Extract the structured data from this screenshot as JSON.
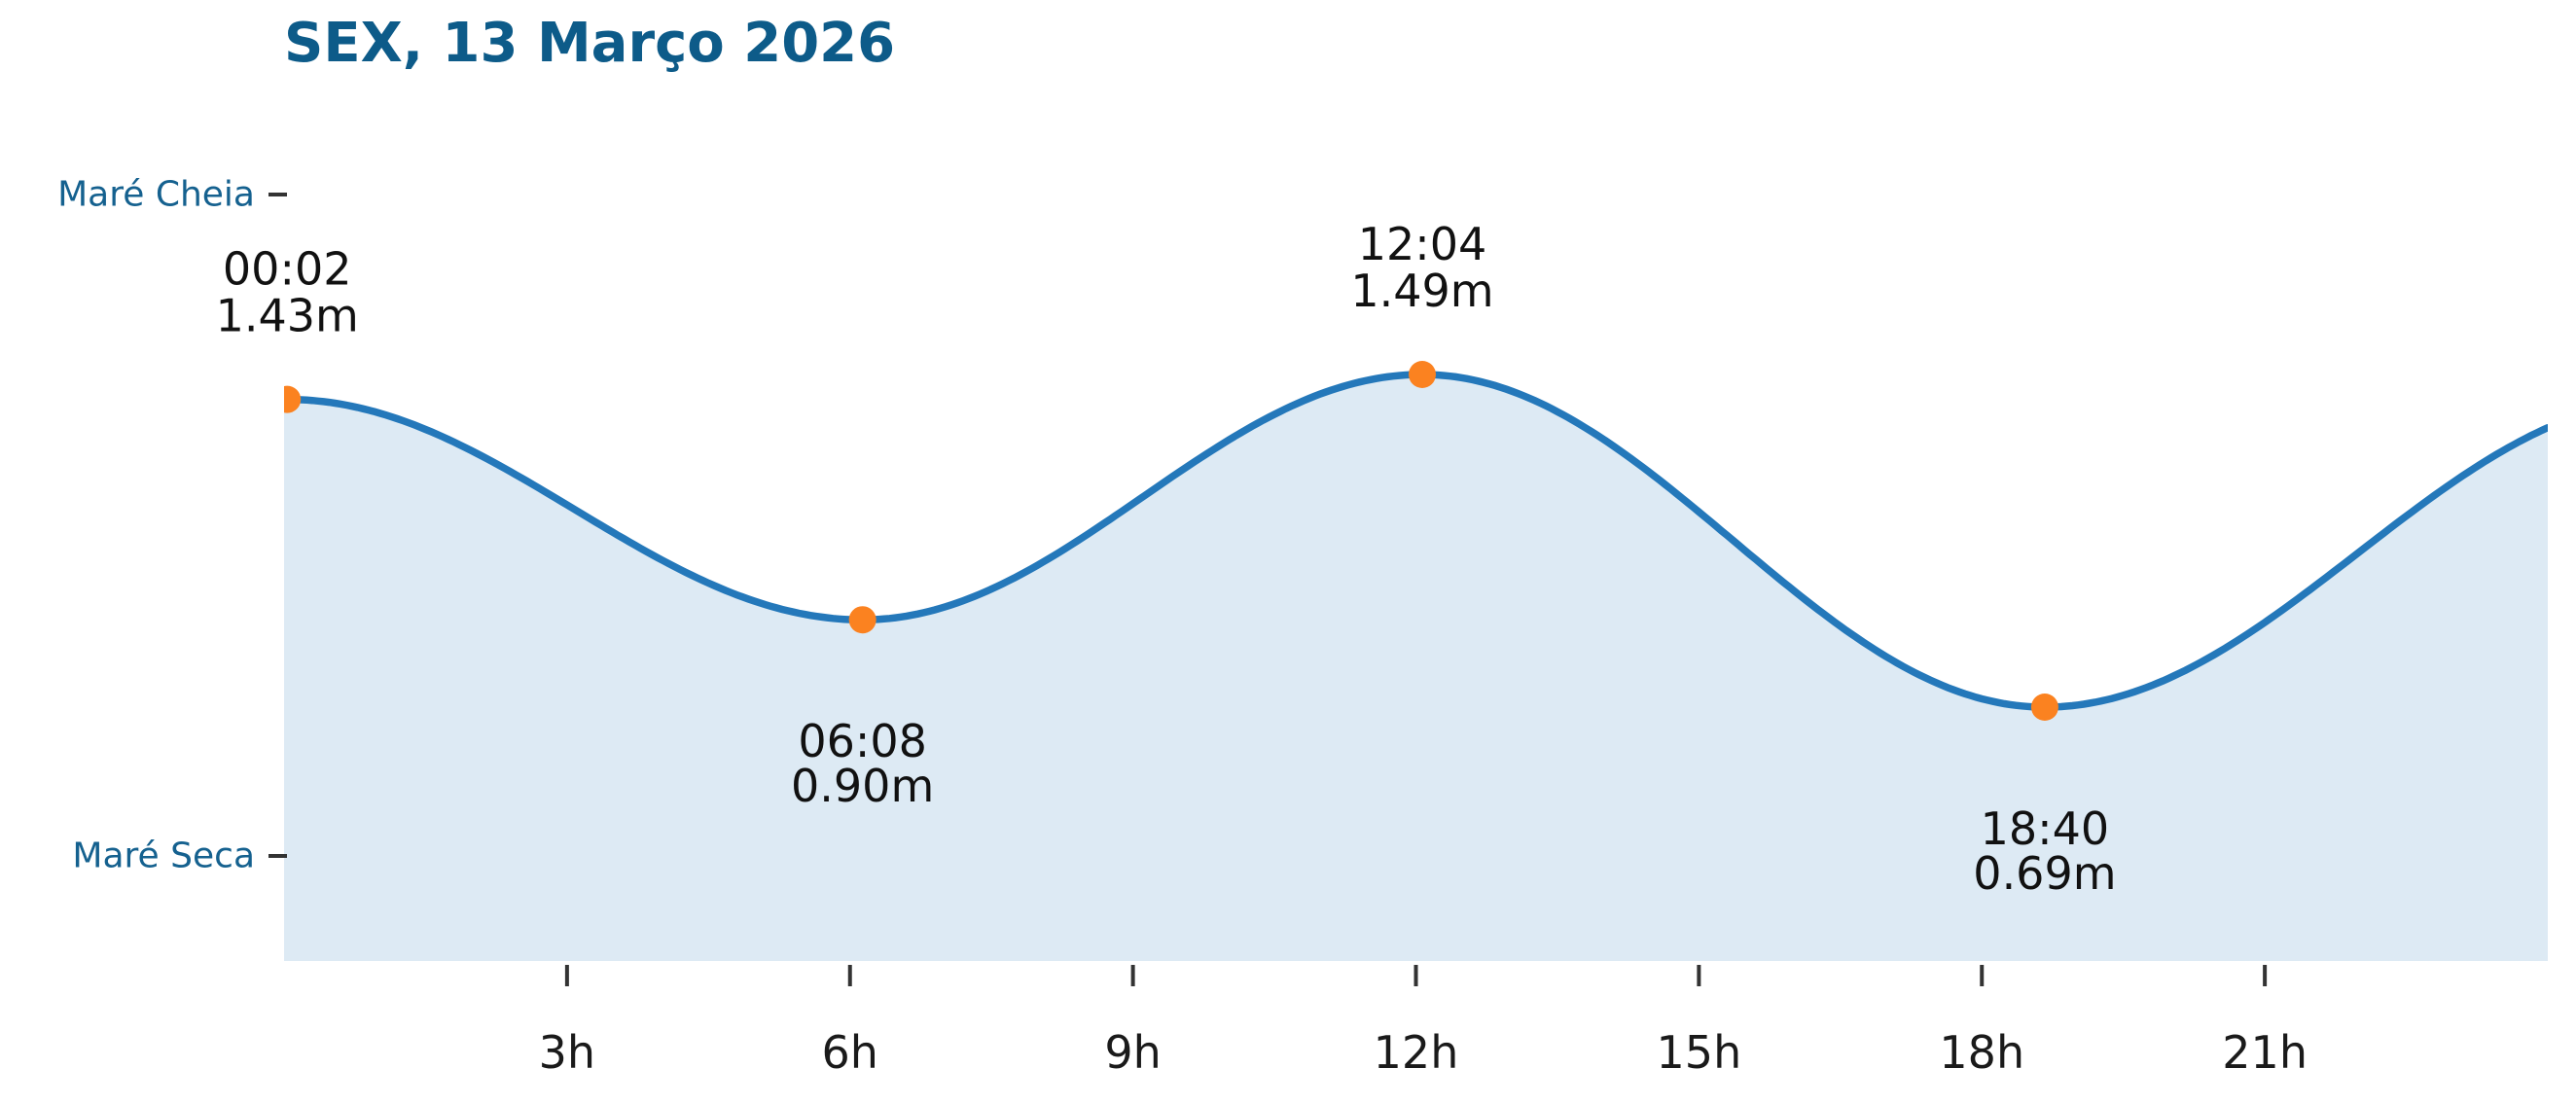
{
  "title": "SEX, 13 Março 2026",
  "colors": {
    "title": "#0d5b89",
    "y_axis_label": "#15618f",
    "line": "#2478ba",
    "area_fill": "#ddeaf4",
    "marker": "#fb8220",
    "tick_mark": "#333333",
    "tick_label": "#1a1a1a",
    "annotation_text": "#111111"
  },
  "chart_data": {
    "type": "area",
    "title": "SEX, 13 Março 2026",
    "x_unit": "hours",
    "x_range": [
      0,
      24
    ],
    "grid": false,
    "legend": false,
    "x_ticks": [
      {
        "label": "3h",
        "hour": 3
      },
      {
        "label": "6h",
        "hour": 6
      },
      {
        "label": "9h",
        "hour": 9
      },
      {
        "label": "12h",
        "hour": 12
      },
      {
        "label": "15h",
        "hour": 15
      },
      {
        "label": "18h",
        "hour": 18
      },
      {
        "label": "21h",
        "hour": 21
      }
    ],
    "y_axis_labels": [
      {
        "label": "Maré Cheia",
        "position": "high"
      },
      {
        "label": "Maré Seca",
        "position": "low"
      }
    ],
    "extremes": [
      {
        "time": "00:02",
        "hour": 0.033,
        "height_m": 1.43,
        "height_label": "1.43m",
        "type": "high"
      },
      {
        "time": "06:08",
        "hour": 6.133,
        "height_m": 0.9,
        "height_label": "0.90m",
        "type": "low"
      },
      {
        "time": "12:04",
        "hour": 12.067,
        "height_m": 1.49,
        "height_label": "1.49m",
        "type": "high"
      },
      {
        "time": "18:40",
        "hour": 18.667,
        "height_m": 0.69,
        "height_label": "0.69m",
        "type": "low"
      }
    ]
  }
}
